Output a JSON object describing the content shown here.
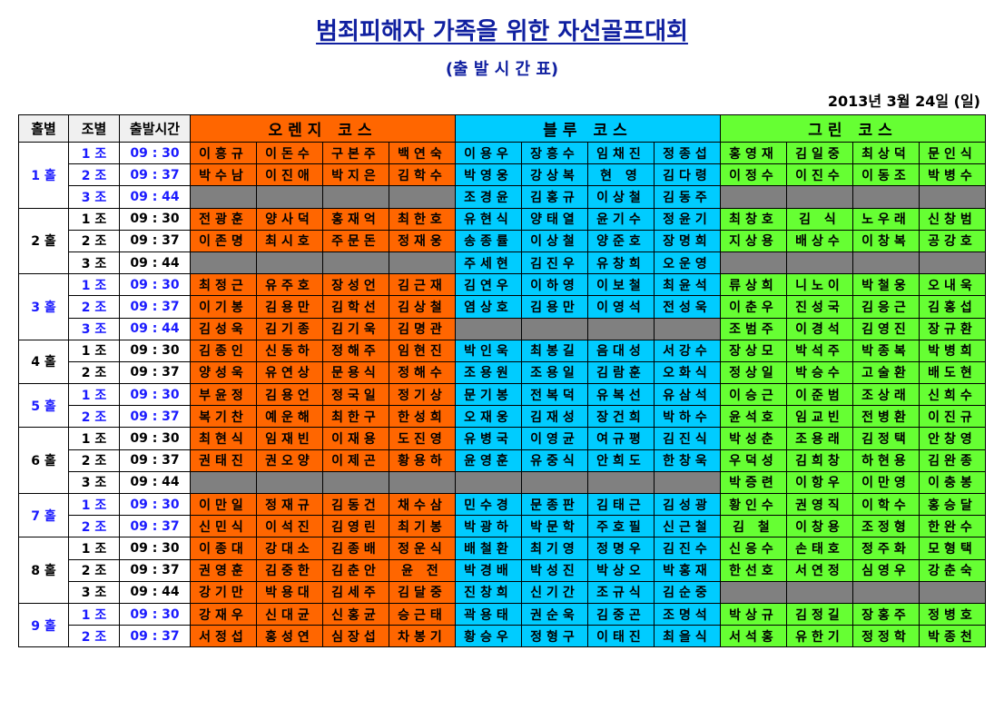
{
  "title": "범죄피해자 가족을 위한 자선골프대회",
  "subtitle": "(출 발 시 간 표)",
  "date": "2013년 3월 24일 (일)",
  "headers": {
    "hole": "홀별",
    "group": "조별",
    "time": "출발시간",
    "orange": "오렌지 코스",
    "blue": "블루 코스",
    "green": "그린 코스"
  },
  "holes": [
    {
      "label": "1 홀",
      "blue": true,
      "rows": [
        {
          "group": "1 조",
          "time": "09 : 30",
          "orange": [
            "이흥규",
            "이돈수",
            "구본주",
            "백연숙"
          ],
          "blue_course": [
            "이용우",
            "장흥수",
            "임채진",
            "정종섭"
          ],
          "green": [
            "홍영재",
            "김일중",
            "최상덕",
            "문인식"
          ]
        },
        {
          "group": "2 조",
          "time": "09 : 37",
          "orange": [
            "박수남",
            "이진애",
            "박지은",
            "김학수"
          ],
          "blue_course": [
            "박영웅",
            "강상복",
            "현 영",
            "김다령"
          ],
          "green": [
            "이정수",
            "이진수",
            "이동조",
            "박병수"
          ]
        },
        {
          "group": "3 조",
          "time": "09 : 44",
          "orange": [
            "",
            "",
            "",
            ""
          ],
          "blue_course": [
            "조경윤",
            "김홍규",
            "이상철",
            "김동주"
          ],
          "green": [
            "",
            "",
            "",
            ""
          ]
        }
      ]
    },
    {
      "label": "2 홀",
      "blue": false,
      "rows": [
        {
          "group": "1 조",
          "time": "09 : 30",
          "orange": [
            "전광훈",
            "양사덕",
            "홍재억",
            "최한호"
          ],
          "blue_course": [
            "유현식",
            "양태열",
            "윤기수",
            "정윤기"
          ],
          "green": [
            "최창호",
            "김 식",
            "노우래",
            "신창범"
          ]
        },
        {
          "group": "2 조",
          "time": "09 : 37",
          "orange": [
            "이존명",
            "최시호",
            "주문돈",
            "정재웅"
          ],
          "blue_course": [
            "송종률",
            "이상철",
            "양준호",
            "장명희"
          ],
          "green": [
            "지상용",
            "배상수",
            "이창복",
            "공강호"
          ]
        },
        {
          "group": "3 조",
          "time": "09 : 44",
          "orange": [
            "",
            "",
            "",
            ""
          ],
          "blue_course": [
            "주세현",
            "김진우",
            "유창희",
            "오운영"
          ],
          "green": [
            "",
            "",
            "",
            ""
          ]
        }
      ]
    },
    {
      "label": "3 홀",
      "blue": true,
      "rows": [
        {
          "group": "1 조",
          "time": "09 : 30",
          "orange": [
            "최정근",
            "유주호",
            "장성언",
            "김근재"
          ],
          "blue_course": [
            "김연우",
            "이하영",
            "이보철",
            "최윤석"
          ],
          "green": [
            "류상희",
            "니노이",
            "박철웅",
            "오내욱"
          ]
        },
        {
          "group": "2 조",
          "time": "09 : 37",
          "orange": [
            "이기봉",
            "김용만",
            "김학선",
            "김상철"
          ],
          "blue_course": [
            "염상호",
            "김용만",
            "이영석",
            "전성욱"
          ],
          "green": [
            "이춘우",
            "진성국",
            "김응근",
            "김홍섭"
          ]
        },
        {
          "group": "3 조",
          "time": "09 : 44",
          "orange": [
            "김성욱",
            "김기종",
            "김기욱",
            "김명관"
          ],
          "blue_course": [
            "",
            "",
            "",
            ""
          ],
          "green": [
            "조범주",
            "이경석",
            "김영진",
            "장규환"
          ]
        }
      ]
    },
    {
      "label": "4 홀",
      "blue": false,
      "rows": [
        {
          "group": "1 조",
          "time": "09 : 30",
          "orange": [
            "김종인",
            "신동하",
            "정해주",
            "임현진"
          ],
          "blue_course": [
            "박인욱",
            "최봉길",
            "음대성",
            "서강수"
          ],
          "green": [
            "장상모",
            "박석주",
            "박종복",
            "박병희"
          ]
        },
        {
          "group": "2 조",
          "time": "09 : 37",
          "orange": [
            "양성욱",
            "유연상",
            "문용식",
            "정해수"
          ],
          "blue_course": [
            "조용원",
            "조용일",
            "김람훈",
            "오화식"
          ],
          "green": [
            "정상일",
            "박승수",
            "고술환",
            "배도현"
          ]
        }
      ]
    },
    {
      "label": "5 홀",
      "blue": true,
      "rows": [
        {
          "group": "1 조",
          "time": "09 : 30",
          "orange": [
            "부윤정",
            "김용언",
            "정국일",
            "정기상"
          ],
          "blue_course": [
            "문기봉",
            "전복덕",
            "유복선",
            "유삼석"
          ],
          "green": [
            "이승근",
            "이준범",
            "조상래",
            "신희수"
          ]
        },
        {
          "group": "2 조",
          "time": "09 : 37",
          "orange": [
            "복기찬",
            "예운해",
            "최한구",
            "한성희"
          ],
          "blue_course": [
            "오재웅",
            "김재성",
            "장건희",
            "박하수"
          ],
          "green": [
            "윤석호",
            "임교빈",
            "전병환",
            "이진규"
          ]
        }
      ]
    },
    {
      "label": "6 홀",
      "blue": false,
      "rows": [
        {
          "group": "1 조",
          "time": "09 : 30",
          "orange": [
            "최현식",
            "임재빈",
            "이재용",
            "도진영"
          ],
          "blue_course": [
            "유병국",
            "이영균",
            "여규평",
            "김진식"
          ],
          "green": [
            "박성춘",
            "조용래",
            "김정택",
            "안창영"
          ]
        },
        {
          "group": "2 조",
          "time": "09 : 37",
          "orange": [
            "권태진",
            "권오양",
            "이제곤",
            "황용하"
          ],
          "blue_course": [
            "윤영훈",
            "유중식",
            "안희도",
            "한창욱"
          ],
          "green": [
            "우덕성",
            "김희창",
            "하현용",
            "김완종"
          ]
        },
        {
          "group": "3 조",
          "time": "09 : 44",
          "orange": [
            "",
            "",
            "",
            ""
          ],
          "blue_course": [
            "",
            "",
            "",
            ""
          ],
          "green": [
            "박증련",
            "이항우",
            "이만영",
            "이충봉"
          ]
        }
      ]
    },
    {
      "label": "7 홀",
      "blue": true,
      "rows": [
        {
          "group": "1 조",
          "time": "09 : 30",
          "orange": [
            "이만일",
            "정재규",
            "김동건",
            "채수삼"
          ],
          "blue_course": [
            "민수경",
            "문종판",
            "김태근",
            "김성광"
          ],
          "green": [
            "황인수",
            "권영직",
            "이학수",
            "홍승달"
          ]
        },
        {
          "group": "2 조",
          "time": "09 : 37",
          "orange": [
            "신민식",
            "이석진",
            "김영린",
            "최기봉"
          ],
          "blue_course": [
            "박광하",
            "박문학",
            "주호필",
            "신근철"
          ],
          "green": [
            "김 철",
            "이창용",
            "조정형",
            "한완수"
          ]
        }
      ]
    },
    {
      "label": "8 홀",
      "blue": false,
      "rows": [
        {
          "group": "1 조",
          "time": "09 : 30",
          "orange": [
            "이종대",
            "강대소",
            "김종배",
            "정운식"
          ],
          "blue_course": [
            "배철환",
            "최기영",
            "정명우",
            "김진수"
          ],
          "green": [
            "신응수",
            "손태호",
            "정주화",
            "모형택"
          ]
        },
        {
          "group": "2 조",
          "time": "09 : 37",
          "orange": [
            "권영훈",
            "김중한",
            "김춘안",
            "윤 전"
          ],
          "blue_course": [
            "박경배",
            "박성진",
            "박상오",
            "박홍재"
          ],
          "green": [
            "한선호",
            "서연정",
            "심영우",
            "강춘숙"
          ]
        },
        {
          "group": "3 조",
          "time": "09 : 44",
          "orange": [
            "강기만",
            "박용대",
            "김세주",
            "김달중"
          ],
          "blue_course": [
            "진창희",
            "신기간",
            "조규식",
            "김순중"
          ],
          "green": [
            "",
            "",
            "",
            ""
          ]
        }
      ]
    },
    {
      "label": "9 홀",
      "blue": true,
      "rows": [
        {
          "group": "1 조",
          "time": "09 : 30",
          "orange": [
            "강재우",
            "신대균",
            "신홍균",
            "승근태"
          ],
          "blue_course": [
            "곽용태",
            "권순욱",
            "김중곤",
            "조명석"
          ],
          "green": [
            "박상규",
            "김정길",
            "장홍주",
            "정병호"
          ]
        },
        {
          "group": "2 조",
          "time": "09 : 37",
          "orange": [
            "서정섭",
            "홍성연",
            "심장섭",
            "차봉기"
          ],
          "blue_course": [
            "황승우",
            "정형구",
            "이태진",
            "최을식"
          ],
          "green": [
            "서석홍",
            "유한기",
            "정정학",
            "박종천"
          ]
        }
      ]
    }
  ]
}
